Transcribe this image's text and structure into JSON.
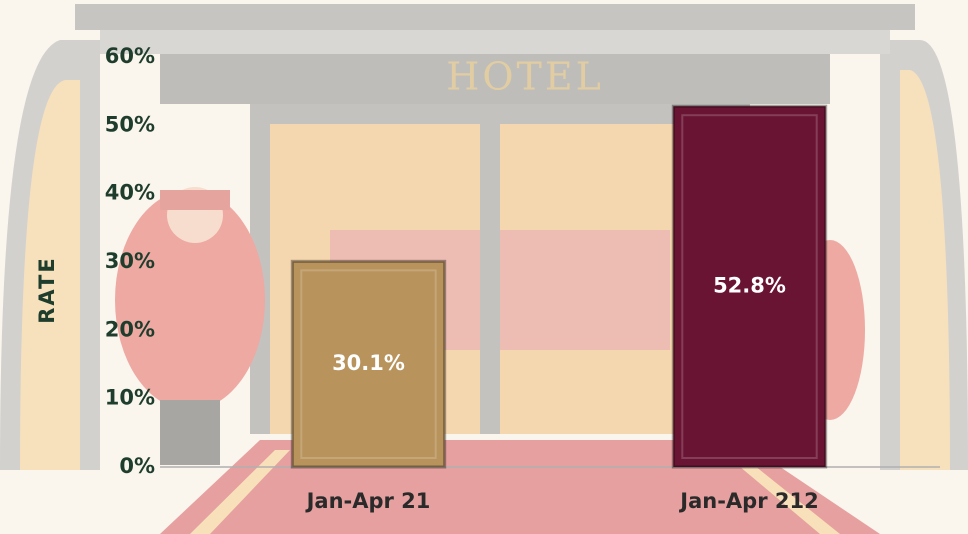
{
  "chart_data": {
    "type": "bar",
    "annotations": [
      "HOTEL"
    ],
    "y_axis_label": "RATE",
    "categories": [
      "Jan-Apr 21",
      "Jan-Apr 212"
    ],
    "values": [
      30.1,
      52.8
    ],
    "value_labels": [
      "30.1%",
      "52.8%"
    ],
    "colors": [
      "#b8935c",
      "#6a1434"
    ],
    "ylim": [
      0,
      60
    ],
    "yticks": [
      {
        "value": 0,
        "label": "0%"
      },
      {
        "value": 10,
        "label": "10%"
      },
      {
        "value": 20,
        "label": "20%"
      },
      {
        "value": 30,
        "label": "30%"
      },
      {
        "value": 40,
        "label": "40%"
      },
      {
        "value": 50,
        "label": "50%"
      },
      {
        "value": 60,
        "label": "60%"
      }
    ],
    "grid": false
  }
}
